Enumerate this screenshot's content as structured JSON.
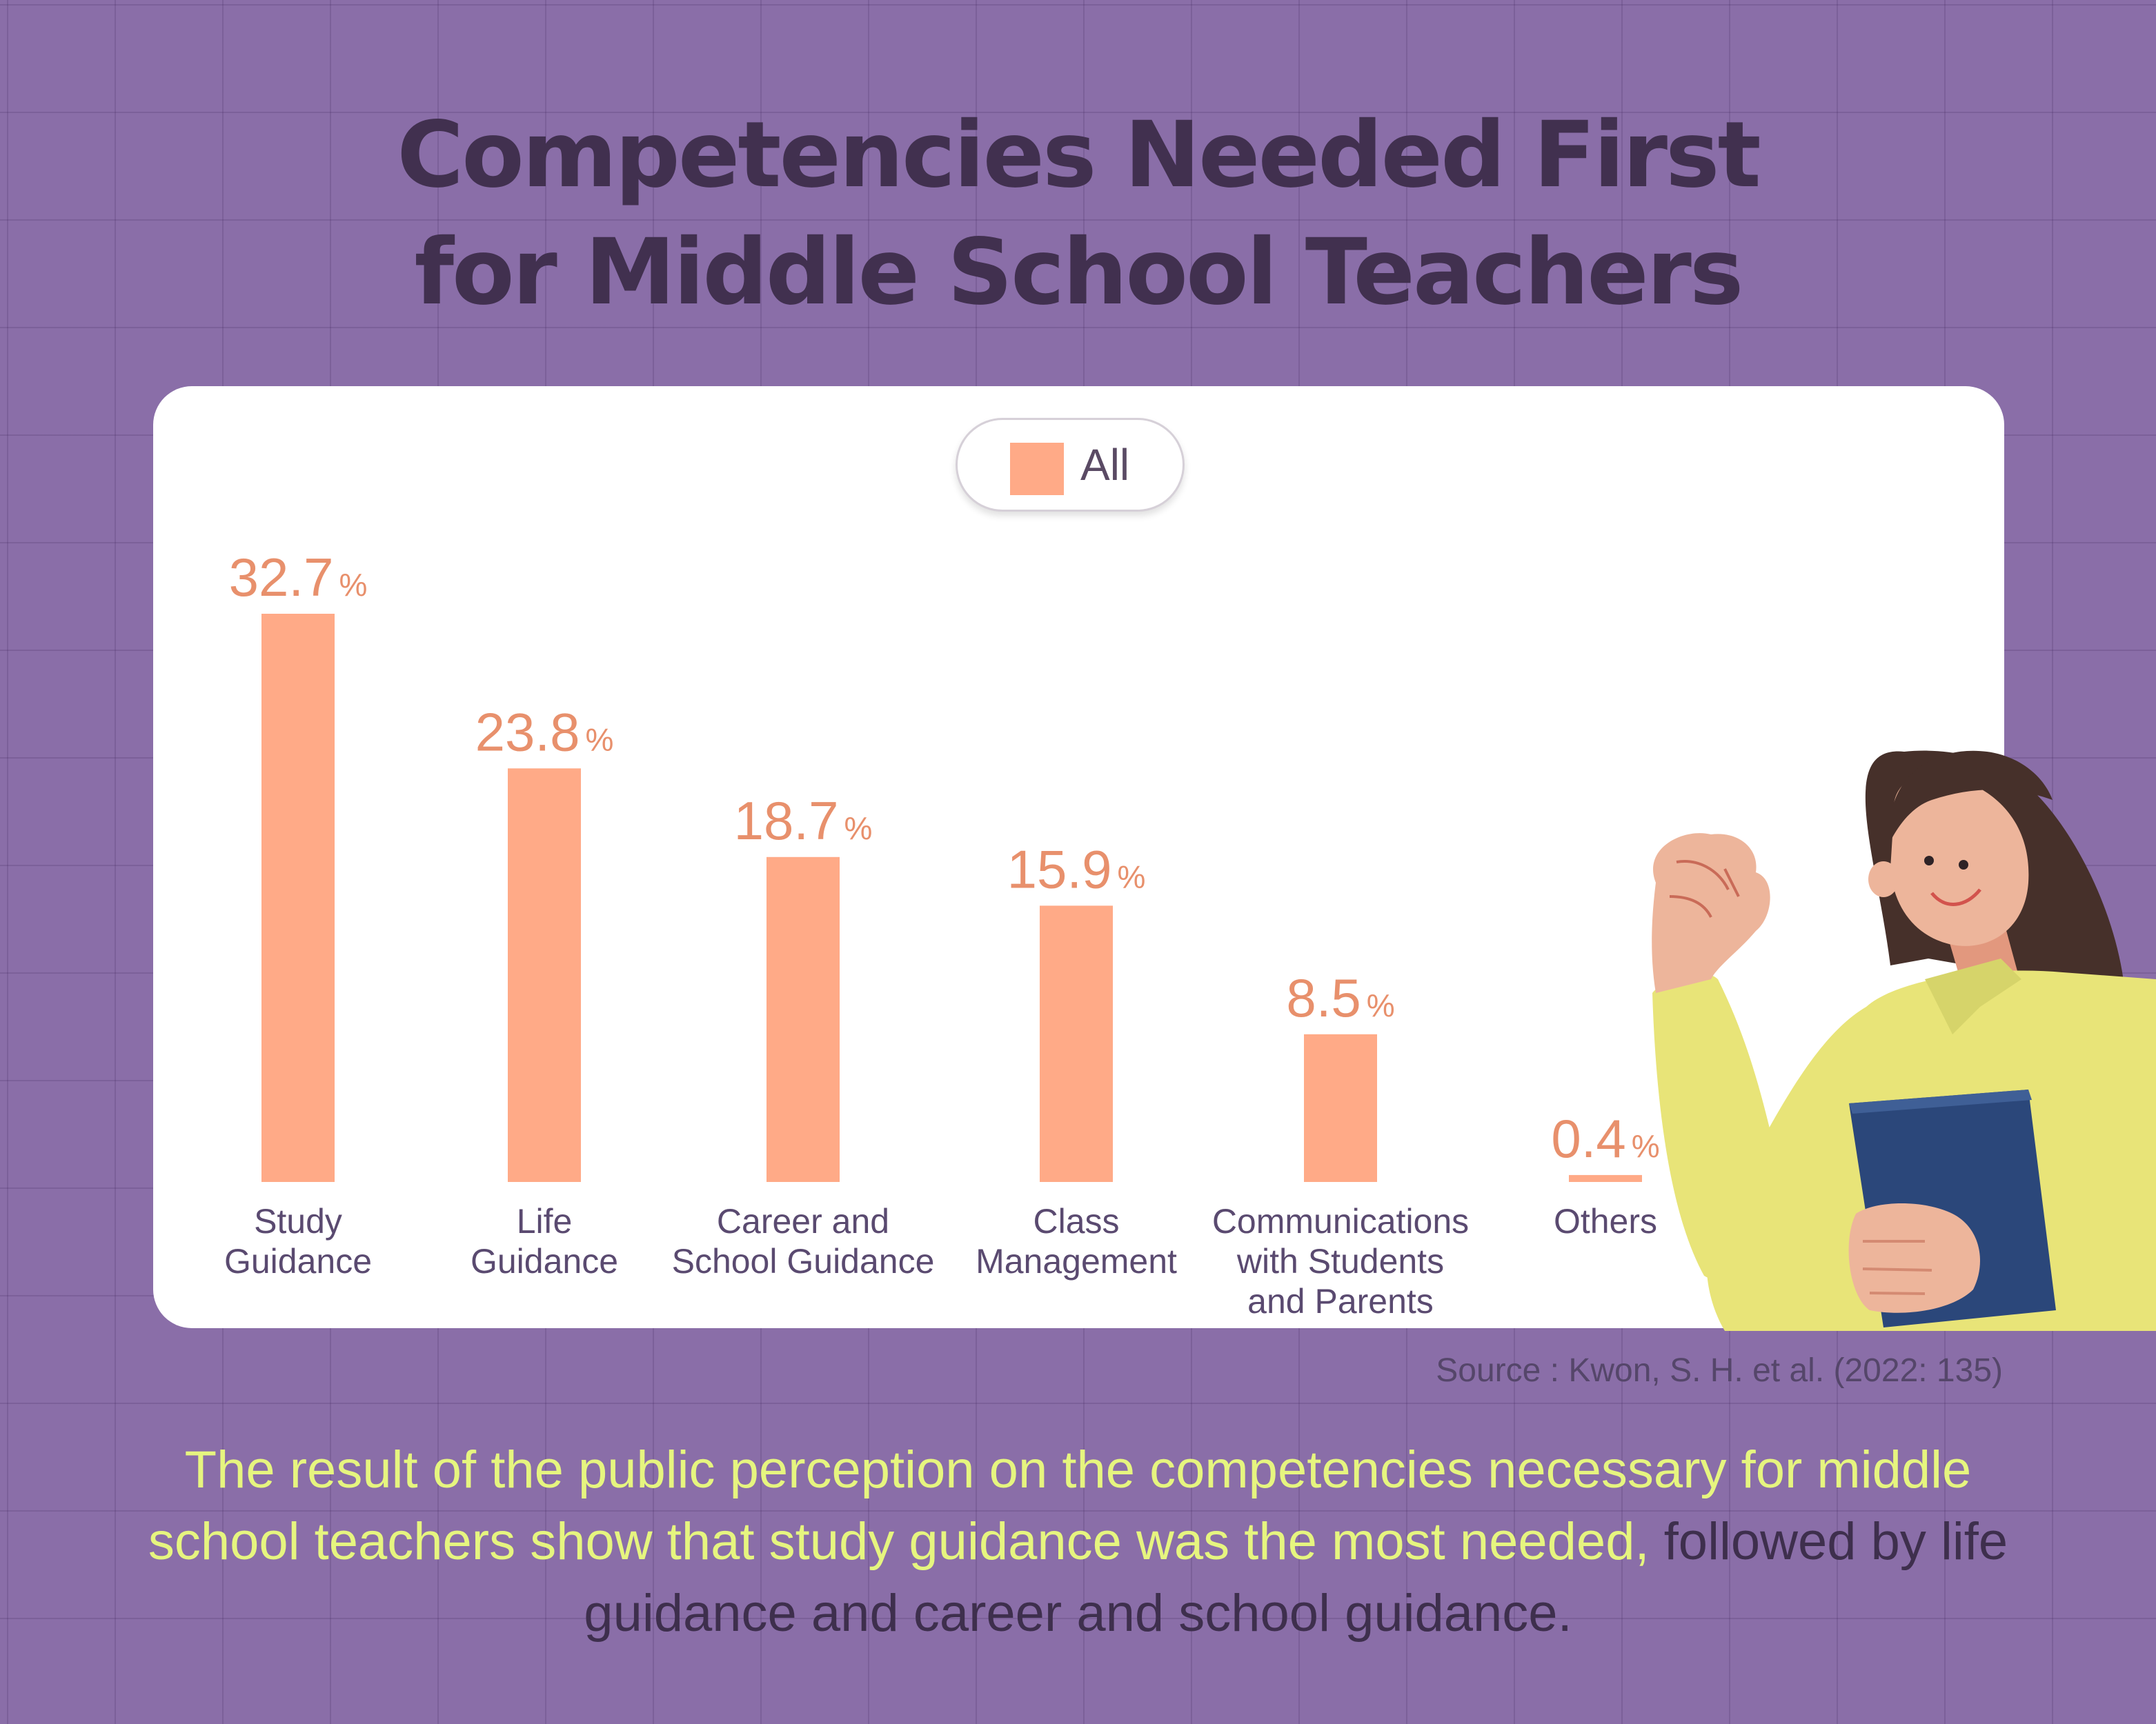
{
  "title": {
    "line1": "Competencies Needed First",
    "line2": "for Middle School Teachers"
  },
  "legend": {
    "label": "All"
  },
  "colors": {
    "background": "#8a6ea8",
    "bar": "#ffaa87",
    "value_label": "#e8906c",
    "title": "#41304f",
    "highlight_text": "#e6f57f"
  },
  "chart_data": {
    "type": "bar",
    "categories": [
      [
        "Study",
        "Guidance"
      ],
      [
        "Life",
        "Guidance"
      ],
      [
        "Career and",
        "School Guidance"
      ],
      [
        "Class",
        "Management"
      ],
      [
        "Communications",
        "with Students",
        "and Parents"
      ],
      [
        "Others"
      ]
    ],
    "series": [
      {
        "name": "All",
        "values": [
          32.7,
          23.8,
          18.7,
          15.9,
          8.5,
          0.4
        ]
      }
    ],
    "unit": "%",
    "ylim": [
      0,
      32.7
    ],
    "grid": false,
    "legend": "top-center"
  },
  "source": "Source : Kwon, S. H. et al. (2022: 135)",
  "description": {
    "highlight": "The result of the public perception on the competencies necessary for middle school teachers show that study guidance was the most needed,",
    "rest": " followed by life guidance and career and school guidance."
  }
}
